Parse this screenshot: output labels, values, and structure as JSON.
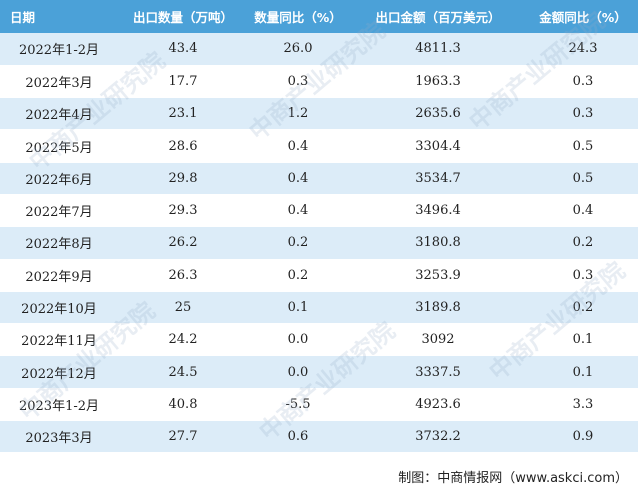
{
  "table": {
    "headers": [
      "日期",
      "出口数量（万吨）",
      "数量同比（%）",
      "出口金额（百万美元）",
      "金额同比（%）"
    ],
    "rows": [
      [
        "2022年1-2月",
        "43.4",
        "26.0",
        "4811.3",
        "24.3"
      ],
      [
        "2022年3月",
        "17.7",
        "0.3",
        "1963.3",
        "0.3"
      ],
      [
        "2022年4月",
        "23.1",
        "1.2",
        "2635.6",
        "0.3"
      ],
      [
        "2022年5月",
        "28.6",
        "0.4",
        "3304.4",
        "0.5"
      ],
      [
        "2022年6月",
        "29.8",
        "0.4",
        "3534.7",
        "0.5"
      ],
      [
        "2022年7月",
        "29.3",
        "0.4",
        "3496.4",
        "0.4"
      ],
      [
        "2022年8月",
        "26.2",
        "0.2",
        "3180.8",
        "0.2"
      ],
      [
        "2022年9月",
        "26.3",
        "0.2",
        "3253.9",
        "0.3"
      ],
      [
        "2022年10月",
        "25",
        "0.1",
        "3189.8",
        "0.2"
      ],
      [
        "2022年11月",
        "24.2",
        "0.0",
        "3092",
        "0.1"
      ],
      [
        "2022年12月",
        "24.5",
        "0.0",
        "3337.5",
        "0.1"
      ],
      [
        "2023年1-2月",
        "40.8",
        "-5.5",
        "4923.6",
        "3.3"
      ],
      [
        "2023年3月",
        "27.7",
        "0.6",
        "3732.2",
        "0.9"
      ]
    ]
  },
  "watermark_text": "中商产业研究院",
  "footer": "制图：中商情报网（www.askci.com）",
  "colors": {
    "header_bg": "#4ba1d8",
    "row_alt_bg": "#dcecf8",
    "row_bg": "#ffffff"
  }
}
